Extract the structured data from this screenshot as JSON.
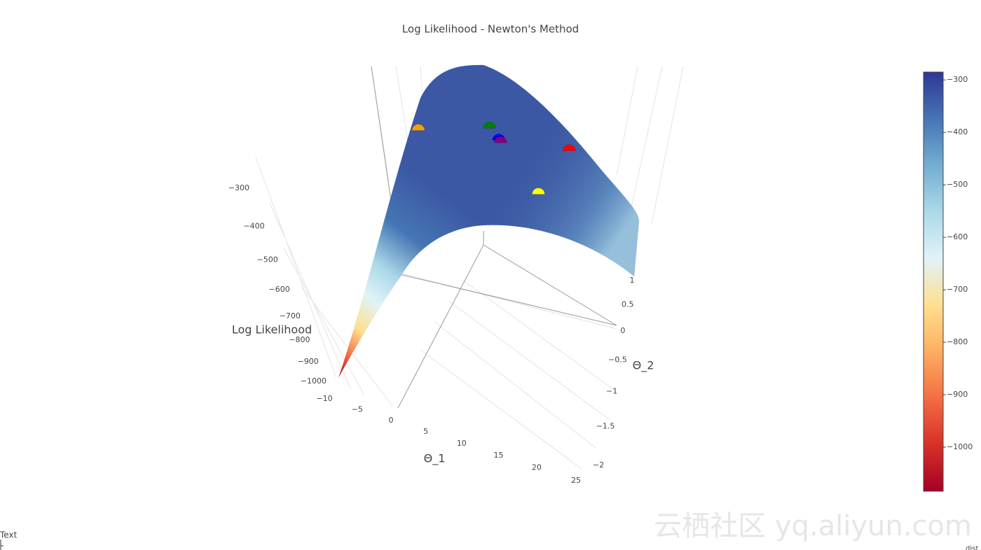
{
  "chart_data": {
    "type": "surface3d",
    "title": "Log Likelihood - Newton's Method",
    "x_label": "Θ_1",
    "y_label": "Θ_2",
    "z_label": "Log Likelihood",
    "xticks": [
      {
        "value": -10,
        "label": "−10"
      },
      {
        "value": -5,
        "label": "−5"
      },
      0,
      5,
      10,
      15,
      20,
      25
    ],
    "yticks": [
      1,
      0.5,
      0,
      {
        "value": -0.5,
        "label": "−0.5"
      },
      {
        "value": -1,
        "label": "−1"
      },
      {
        "value": -1.5,
        "label": "−1.5"
      },
      {
        "value": -2,
        "label": "−2"
      }
    ],
    "zticks": [
      {
        "value": -300,
        "label": "−300"
      },
      {
        "value": -400,
        "label": "−400"
      },
      {
        "value": -500,
        "label": "−500"
      },
      {
        "value": -600,
        "label": "−600"
      },
      {
        "value": -700,
        "label": "−700"
      },
      {
        "value": -800,
        "label": "−800"
      },
      {
        "value": -900,
        "label": "−900"
      },
      {
        "value": -1000,
        "label": "−1000"
      }
    ],
    "colorbar": {
      "cmin": -1084,
      "cmax": -285,
      "ticks": [
        {
          "value": -300,
          "label": "−300"
        },
        {
          "value": -400,
          "label": "−400"
        },
        {
          "value": -500,
          "label": "−500"
        },
        {
          "value": -600,
          "label": "−600"
        },
        {
          "value": -700,
          "label": "−700"
        },
        {
          "value": -800,
          "label": "−800"
        },
        {
          "value": -900,
          "label": "−900"
        },
        {
          "value": -1000,
          "label": "−1000"
        }
      ],
      "colorscale": [
        "#a50026",
        "#d73027",
        "#f46d43",
        "#fdae61",
        "#fee090",
        "#e0f3f8",
        "#abd9e9",
        "#74add1",
        "#4575b4",
        "#313695"
      ]
    },
    "points": [
      {
        "color": "#f2a00c",
        "x": 9.1,
        "y": -0.03,
        "z": -330
      },
      {
        "color": "#008000",
        "x": 18.4,
        "y": 0.36,
        "z": -330
      },
      {
        "color": "#0000ff",
        "x": 19.9,
        "y": 0.22,
        "z": -330
      },
      {
        "color": "#800080",
        "x": 20.2,
        "y": 0.19,
        "z": -330
      },
      {
        "color": "#ff0000",
        "x": 29.4,
        "y": 0.41,
        "z": -330
      },
      {
        "color": "#ffff00",
        "x": 26.4,
        "y": -0.41,
        "z": -330
      }
    ],
    "footer": "Text",
    "corner": "dist",
    "watermark": "云栖社区 yq.aliyun.com"
  }
}
